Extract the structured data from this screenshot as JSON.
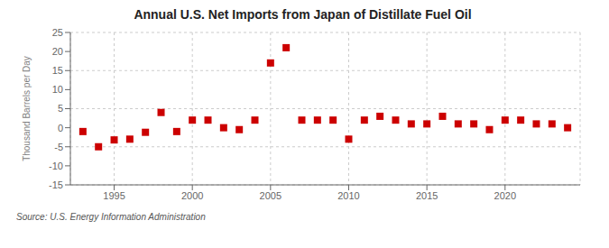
{
  "chart_data": {
    "type": "scatter",
    "title": "Annual U.S. Net Imports from Japan of Distillate Fuel Oil",
    "y_label": "Thousand Barrels per Day",
    "annotations": [
      "Source: U.S. Energy Information Administration"
    ],
    "x": [
      1993,
      1994,
      1995,
      1996,
      1997,
      1998,
      1999,
      2000,
      2001,
      2002,
      2003,
      2004,
      2005,
      2006,
      2007,
      2008,
      2009,
      2010,
      2011,
      2012,
      2013,
      2014,
      2015,
      2016,
      2017,
      2018,
      2019,
      2020,
      2021,
      2022,
      2023,
      2024
    ],
    "values": [
      -1.0,
      -5.0,
      -3.2,
      -3.0,
      -1.2,
      4.0,
      -1.0,
      2.0,
      2.0,
      0.0,
      -0.5,
      2.0,
      17.0,
      21.0,
      2.0,
      2.0,
      2.0,
      -3.0,
      2.0,
      3.0,
      2.0,
      1.0,
      1.0,
      3.0,
      1.0,
      1.0,
      -0.5,
      2.0,
      2.0,
      1.0,
      1.0,
      0.0
    ],
    "color": "#cc0000",
    "marker": "square",
    "xlim": [
      1992.2,
      2024.8
    ],
    "xticks": [
      1995,
      2000,
      2005,
      2010,
      2015,
      2020
    ],
    "ylim": [
      -15,
      25
    ],
    "yticks": [
      -15,
      -10,
      -5,
      0,
      5,
      10,
      15,
      20,
      25
    ],
    "grid": true
  }
}
